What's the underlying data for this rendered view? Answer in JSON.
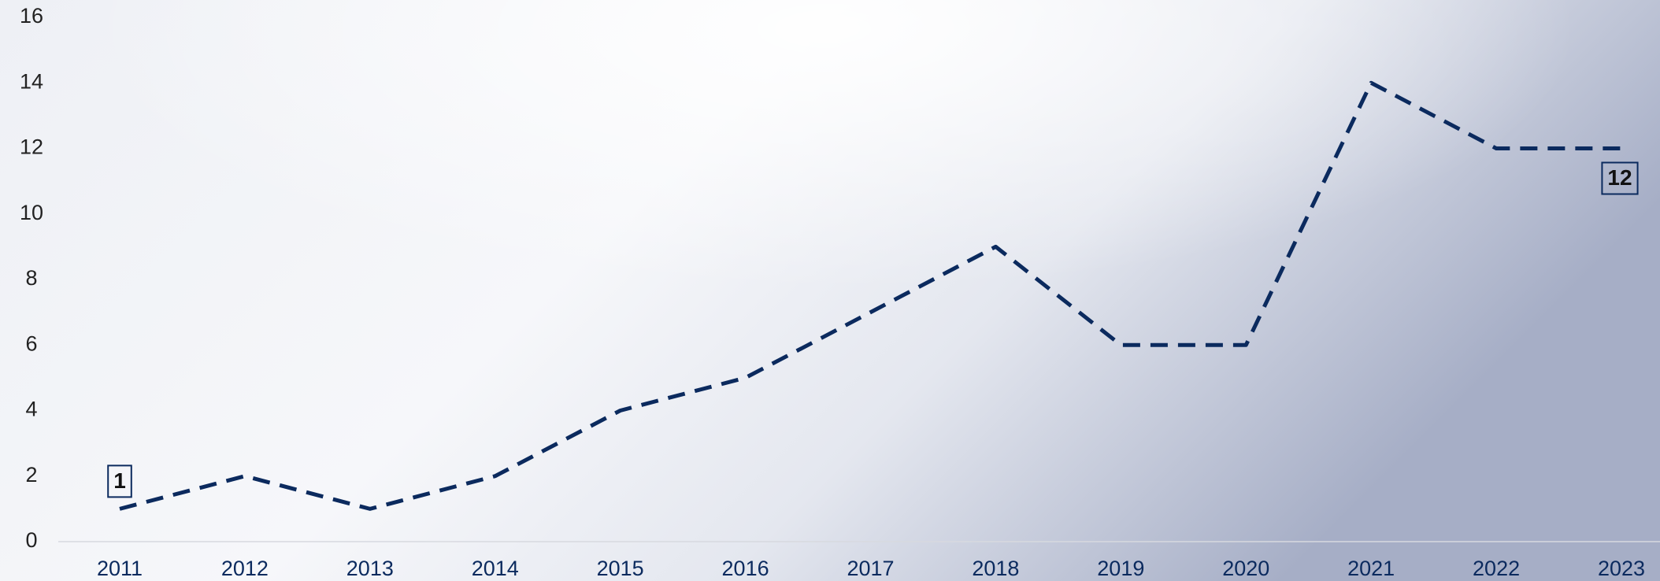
{
  "chart_data": {
    "type": "line",
    "categories": [
      "2011",
      "2012",
      "2013",
      "2014",
      "2015",
      "2016",
      "2017",
      "2018",
      "2019",
      "2020",
      "2021",
      "2022",
      "2023"
    ],
    "values": [
      1,
      2,
      1,
      2,
      4,
      5,
      7,
      9,
      6,
      6,
      14,
      12,
      12
    ],
    "color": "#0b2a5e",
    "line_style": "dashed",
    "ylim": [
      0,
      16
    ],
    "yticks": [
      0,
      2,
      4,
      6,
      8,
      10,
      12,
      14,
      16
    ],
    "grid": false
  }
}
